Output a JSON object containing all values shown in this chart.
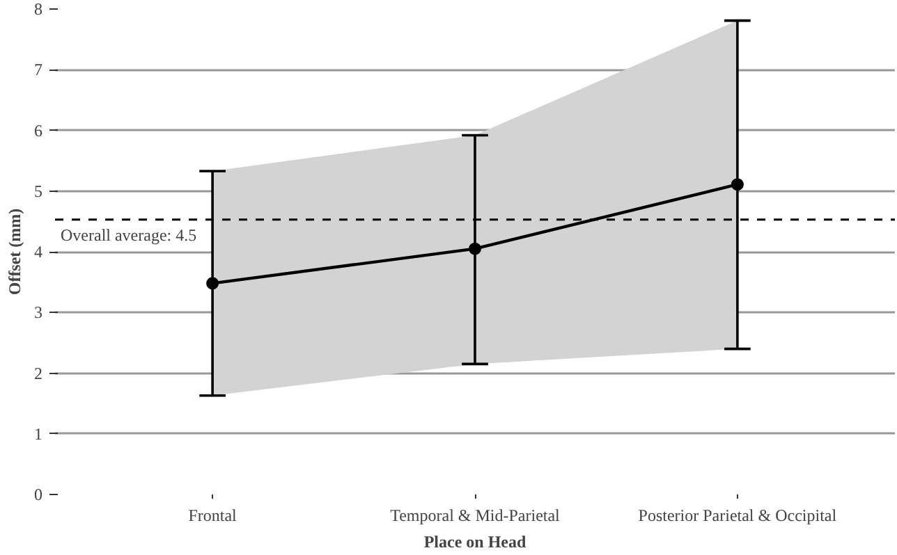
{
  "chart_data": {
    "type": "line",
    "xlabel": "Place on Head",
    "ylabel": "Offset (mm)",
    "categories": [
      "Frontal",
      "Temporal & Mid-Parietal",
      "Posterior Parietal & Occipital"
    ],
    "series": [
      {
        "color": "#000000",
        "values": [
          3.48,
          4.05,
          5.11
        ],
        "errors": [
          [
            1.63,
            5.33
          ],
          [
            2.15,
            5.92
          ],
          [
            2.4,
            7.81
          ]
        ],
        "lower": [
          1.63,
          2.15,
          2.4
        ],
        "upper": [
          5.33,
          5.92,
          7.81
        ]
      }
    ],
    "ylim": [
      0,
      8
    ],
    "yticks": [
      0,
      1,
      2,
      3,
      4,
      5,
      6,
      7,
      8
    ],
    "grid": "y",
    "marker": "circle",
    "line_style": "solid",
    "ref_lines": [
      {
        "axis": "y",
        "value": 4.53,
        "label": "Overall average: 4.5",
        "line_style": "dashed",
        "color": "#000000"
      }
    ]
  }
}
